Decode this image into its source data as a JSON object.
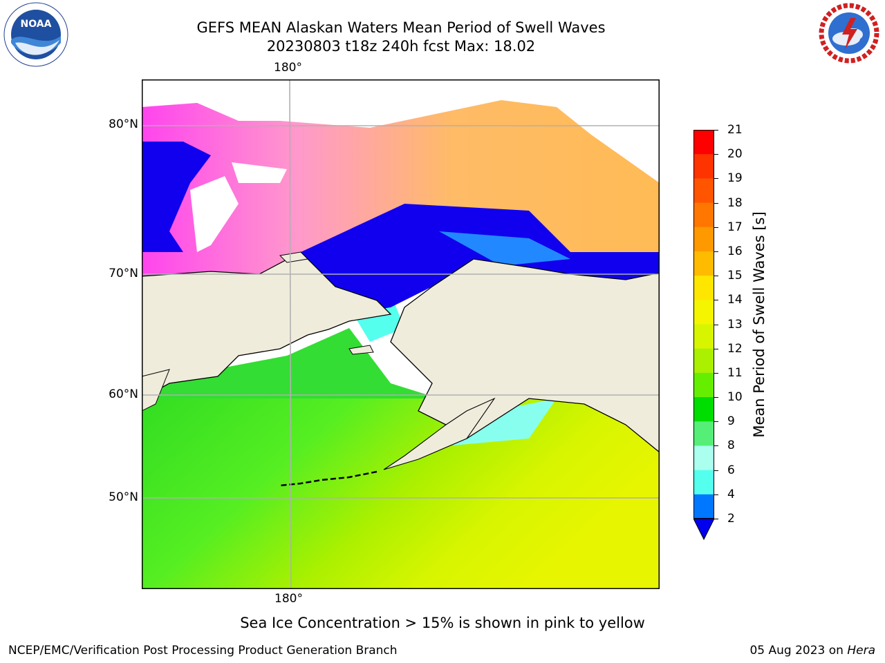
{
  "header": {
    "title_line1": "GEFS MEAN Alaskan Waters Mean Period of Swell Waves",
    "title_line2": "20230803 t18z 240h fcst   Max: 18.02"
  },
  "logos": {
    "left": {
      "name": "noaa-logo",
      "text": "NOAA",
      "ring_text": "NATIONAL OCEANIC AND ATMOSPHERIC ADMINISTRATION · U.S. DEPARTMENT OF COMMERCE"
    },
    "right": {
      "name": "nws-logo",
      "ring_text": "NATIONAL WEATHER SERVICE"
    }
  },
  "map": {
    "lon_label_top": "180°",
    "lon_label_bottom": "180°",
    "lat_labels": [
      "80°N",
      "70°N",
      "60°N",
      "50°N"
    ],
    "land_color": "#efecdc",
    "grid_color": "#b0b0b0"
  },
  "colorbar": {
    "title": "Mean Period of Swell Waves [s]",
    "ticks": [
      "21",
      "20",
      "19",
      "18",
      "17",
      "16",
      "15",
      "14",
      "13",
      "12",
      "11",
      "10",
      "9",
      "8",
      "6",
      "4",
      "2"
    ],
    "colors_top_to_bottom": [
      "#ff0000",
      "#ff3300",
      "#ff5500",
      "#ff7700",
      "#ff9900",
      "#ffbb00",
      "#ffe600",
      "#f5f500",
      "#e6f500",
      "#c8f000",
      "#96f000",
      "#66ee00",
      "#00dd00",
      "#55ee66",
      "#88ffb0",
      "#aaffee",
      "#55ffee",
      "#00ffff",
      "#00ddff",
      "#0077ff"
    ],
    "extend_color": "#0000ee"
  },
  "footer": {
    "ice_note": "Sea Ice Concentration > 15% is shown in pink to yellow",
    "left": "NCEP/EMC/Verification Post Processing Product Generation Branch",
    "right_date": "05 Aug 2023 on ",
    "right_host": "Hera"
  }
}
